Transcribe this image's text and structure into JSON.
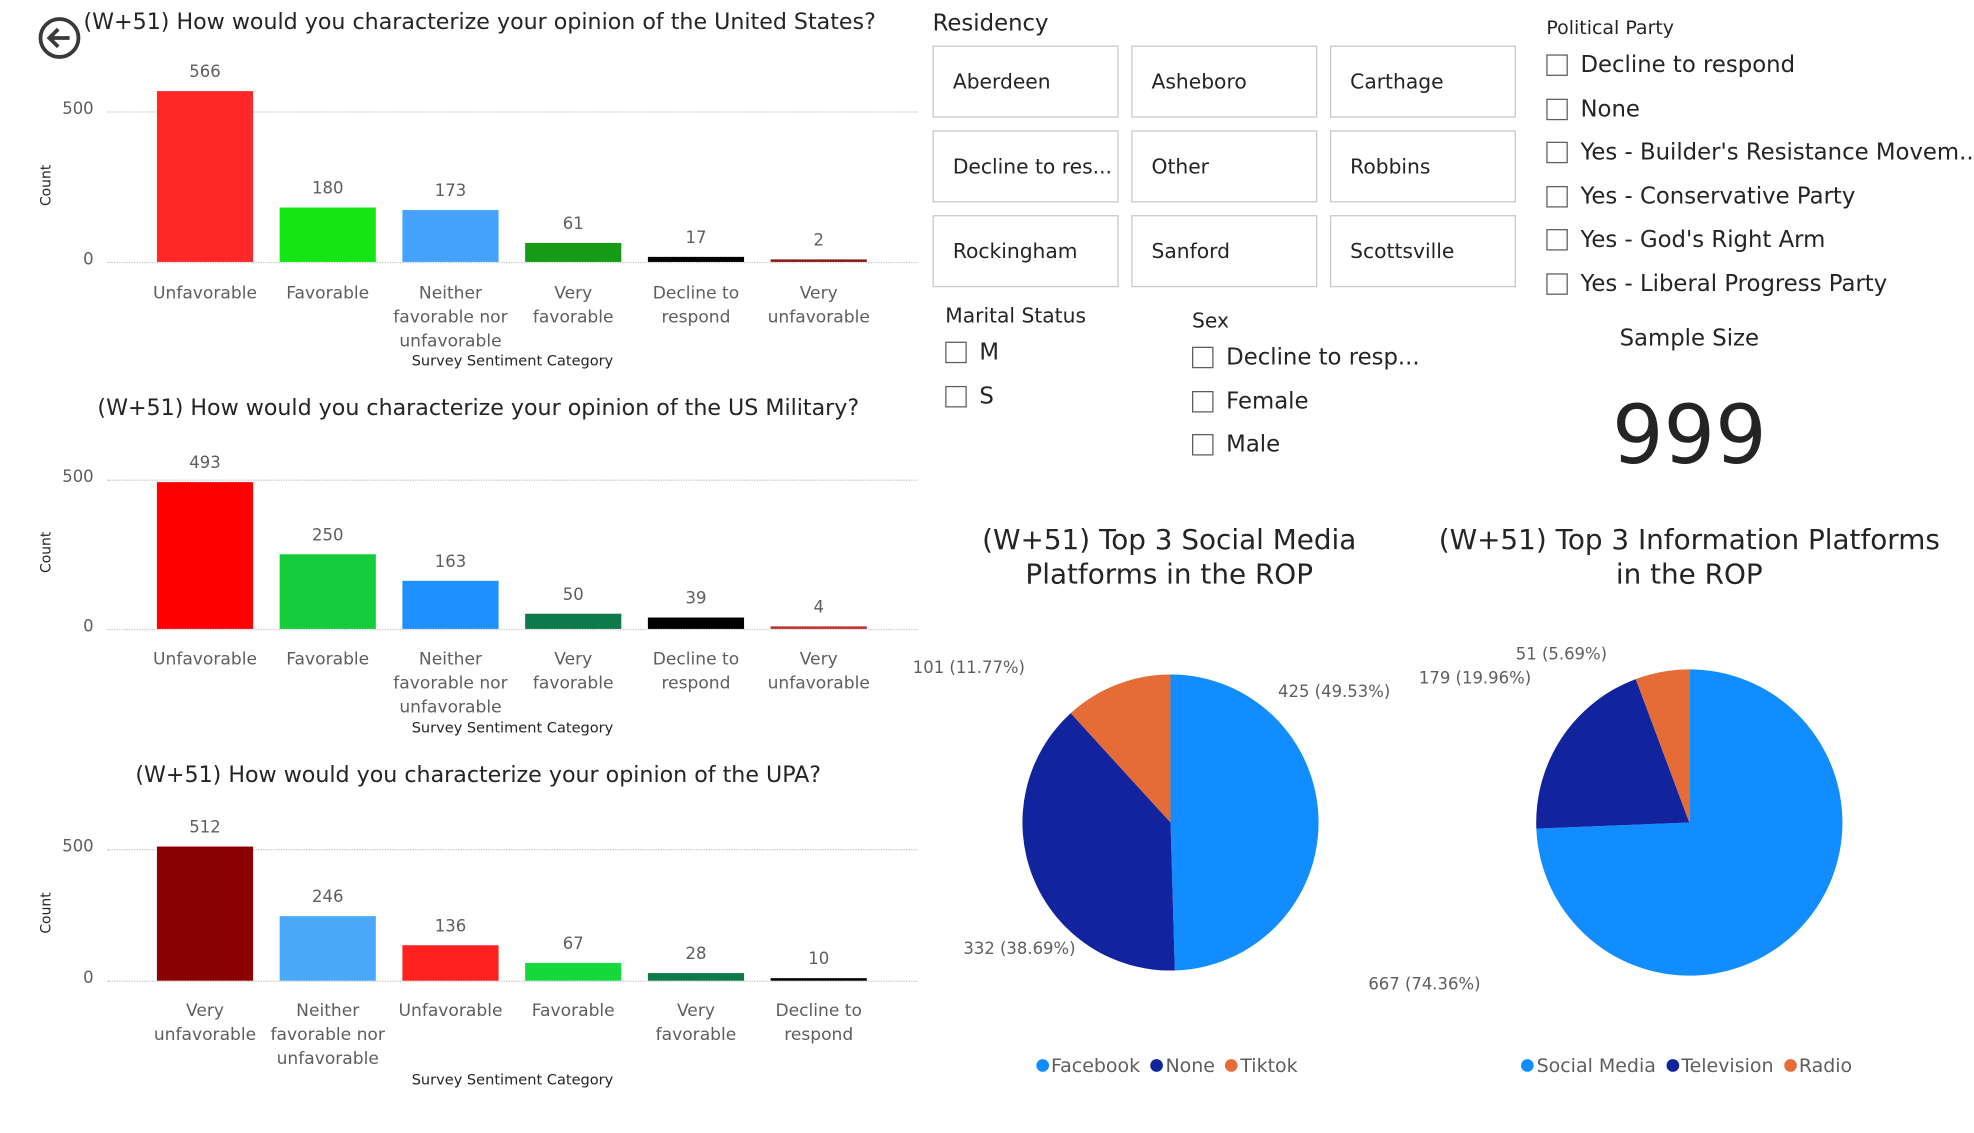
{
  "nav": {
    "back_icon": "back-arrow-icon"
  },
  "chart_data": [
    {
      "type": "bar",
      "title": "(W+51) How would you characterize your opinion of the United States?",
      "xlabel": "Survey Sentiment Category",
      "ylabel": "Count",
      "ylim": [
        0,
        600
      ],
      "yticks": [
        "0",
        "500"
      ],
      "grid": true,
      "categories": [
        "Unfavorable",
        "Favorable",
        "Neither favorable nor unfavorable",
        "Very favorable",
        "Decline to respond",
        "Very unfavorable"
      ],
      "values": [
        566,
        180,
        173,
        61,
        17,
        2
      ],
      "colors": [
        "#FF2828",
        "#14E614",
        "#44A3FF",
        "#169B16",
        "#000000",
        "#8B1A1A"
      ]
    },
    {
      "type": "bar",
      "title": "(W+51) How would you characterize your opinion of the US Military?",
      "xlabel": "Survey Sentiment Category",
      "ylabel": "Count",
      "ylim": [
        0,
        600
      ],
      "yticks": [
        "0",
        "500"
      ],
      "grid": true,
      "categories": [
        "Unfavorable",
        "Favorable",
        "Neither favorable nor unfavorable",
        "Very favorable",
        "Decline to respond",
        "Very unfavorable"
      ],
      "values": [
        493,
        250,
        163,
        50,
        39,
        4
      ],
      "colors": [
        "#FF0000",
        "#14CC3C",
        "#1E90FF",
        "#0E7A4A",
        "#000000",
        "#C03030"
      ]
    },
    {
      "type": "bar",
      "title": "(W+51) How would you characterize your opinion of the UPA?",
      "xlabel": "Survey Sentiment Category",
      "ylabel": "Count",
      "ylim": [
        0,
        600
      ],
      "yticks": [
        "0",
        "500"
      ],
      "grid": true,
      "categories": [
        "Very unfavorable",
        "Neither favorable nor unfavorable",
        "Unfavorable",
        "Favorable",
        "Very favorable",
        "Decline to respond"
      ],
      "values": [
        512,
        246,
        136,
        67,
        28,
        10
      ],
      "colors": [
        "#8B0000",
        "#4AA8F8",
        "#FF2020",
        "#14D83C",
        "#0E7A4A",
        "#000000"
      ]
    },
    {
      "type": "pie",
      "title": "(W+51) Top 3 Social Media Platforms in the ROP",
      "legend": "bottom",
      "categories": [
        "Facebook",
        "None",
        "Tiktok"
      ],
      "values": [
        425,
        332,
        101
      ],
      "percents": [
        "49.53%",
        "38.69%",
        "11.77%"
      ],
      "labels": [
        "425 (49.53%)",
        "332 (38.69%)",
        "101 (11.77%)"
      ],
      "colors": [
        "#118DFF",
        "#12239E",
        "#E66C37"
      ]
    },
    {
      "type": "pie",
      "title": "(W+51) Top 3 Information Platforms in the ROP",
      "legend": "bottom",
      "categories": [
        "Social Media",
        "Television",
        "Radio"
      ],
      "values": [
        667,
        179,
        51
      ],
      "percents": [
        "74.36%",
        "19.96%",
        "5.69%"
      ],
      "labels": [
        "667 (74.36%)",
        "179 (19.96%)",
        "51 (5.69%)"
      ],
      "colors": [
        "#118DFF",
        "#12239E",
        "#E66C37"
      ]
    }
  ],
  "residency": {
    "label": "Residency",
    "items": [
      "Aberdeen",
      "Asheboro",
      "Carthage",
      "Decline to res...",
      "Other",
      "Robbins",
      "Rockingham",
      "Sanford",
      "Scottsville"
    ]
  },
  "political_party": {
    "label": "Political Party",
    "items": [
      "Decline to respond",
      "None",
      "Yes - Builder's Resistance Movem...",
      "Yes - Conservative Party",
      "Yes - God's Right Arm",
      "Yes - Liberal Progress Party"
    ]
  },
  "marital_status": {
    "label": "Marital Status",
    "items": [
      "M",
      "S"
    ]
  },
  "sex": {
    "label": "Sex",
    "items": [
      "Decline to resp...",
      "Female",
      "Male"
    ]
  },
  "sample_size": {
    "label": "Sample Size",
    "value": "999"
  }
}
